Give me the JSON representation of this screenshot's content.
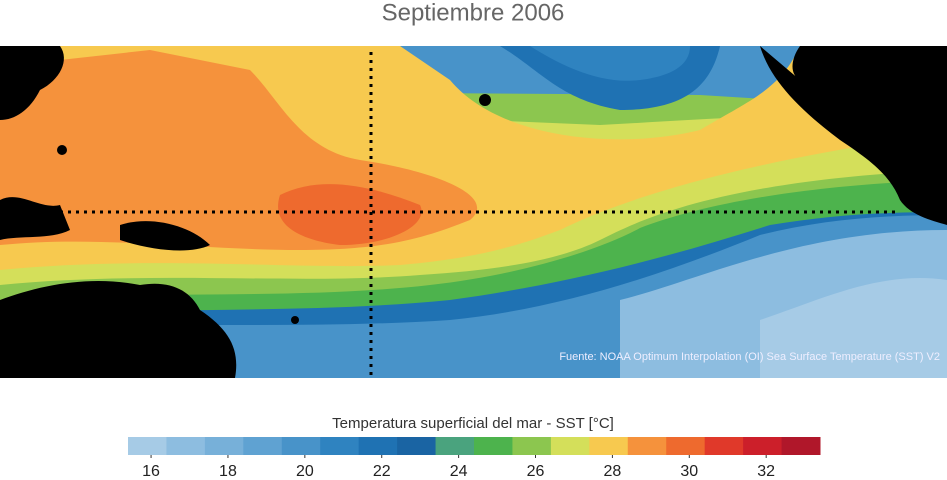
{
  "title": "Septiembre 2006",
  "source": "Fuente: NOAA Optimum Interpolation (OI) Sea Surface Temperature (SST) V2",
  "colorbar": {
    "label": "Temperatura superficial del mar - SST  [°C]",
    "range": [
      15.4,
      33.4
    ],
    "ticks": [
      16,
      18,
      20,
      22,
      24,
      26,
      28,
      30,
      32
    ],
    "colors": [
      "#a6cbe6",
      "#8dbde0",
      "#77b0d9",
      "#5fa2d2",
      "#4893c9",
      "#2f83c0",
      "#1f72b3",
      "#1a64a3",
      "#4aa37e",
      "#4db34d",
      "#8cc64f",
      "#d4df5a",
      "#f7c94f",
      "#f5923c",
      "#ee6a2e",
      "#e0392a",
      "#cc1f2a",
      "#b0172a"
    ]
  }
}
